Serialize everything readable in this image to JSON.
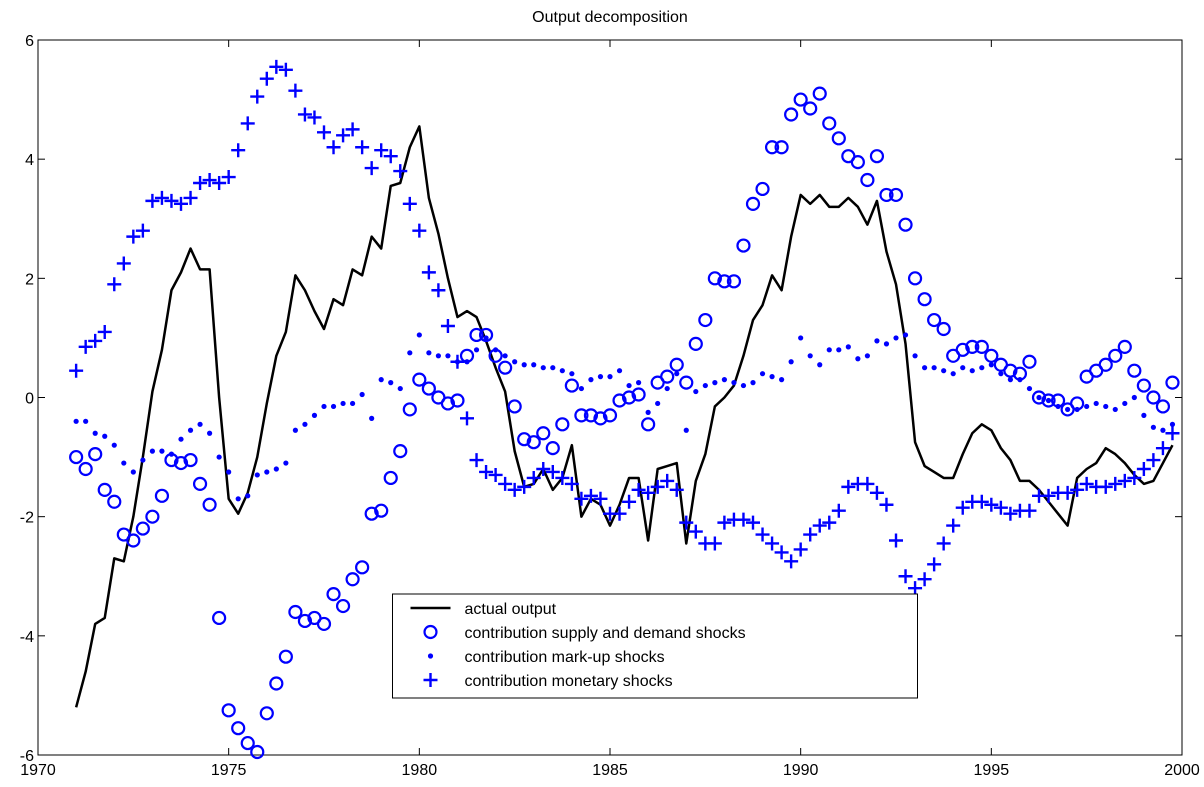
{
  "chart_data": {
    "type": "scatter-line",
    "title": "Output decomposition",
    "x": [
      1971,
      1971.25,
      1971.5,
      1971.75,
      1972,
      1972.25,
      1972.5,
      1972.75,
      1973,
      1973.25,
      1973.5,
      1973.75,
      1974,
      1974.25,
      1974.5,
      1974.75,
      1975,
      1975.25,
      1975.5,
      1975.75,
      1976,
      1976.25,
      1976.5,
      1976.75,
      1977,
      1977.25,
      1977.5,
      1977.75,
      1978,
      1978.25,
      1978.5,
      1978.75,
      1979,
      1979.25,
      1979.5,
      1979.75,
      1980,
      1980.25,
      1980.5,
      1980.75,
      1981,
      1981.25,
      1981.5,
      1981.75,
      1982,
      1982.25,
      1982.5,
      1982.75,
      1983,
      1983.25,
      1983.5,
      1983.75,
      1984,
      1984.25,
      1984.5,
      1984.75,
      1985,
      1985.25,
      1985.5,
      1985.75,
      1986,
      1986.25,
      1986.5,
      1986.75,
      1987,
      1987.25,
      1987.5,
      1987.75,
      1988,
      1988.25,
      1988.5,
      1988.75,
      1989,
      1989.25,
      1989.5,
      1989.75,
      1990,
      1990.25,
      1990.5,
      1990.75,
      1991,
      1991.25,
      1991.5,
      1991.75,
      1992,
      1992.25,
      1992.5,
      1992.75,
      1993,
      1993.25,
      1993.5,
      1993.75,
      1994,
      1994.25,
      1994.5,
      1994.75,
      1995,
      1995.25,
      1995.5,
      1995.75,
      1996,
      1996.25,
      1996.5,
      1996.75,
      1997,
      1997.25,
      1997.5,
      1997.75,
      1998,
      1998.25,
      1998.5,
      1998.75,
      1999,
      1999.25,
      1999.5,
      1999.75
    ],
    "series": [
      {
        "name": "actual output",
        "color": "#000000",
        "marker": "line",
        "values": [
          -5.2,
          -4.6,
          -3.8,
          -3.7,
          -2.7,
          -2.75,
          -2.0,
          -1.0,
          0.1,
          0.8,
          1.8,
          2.1,
          2.5,
          2.15,
          2.15,
          0.0,
          -1.7,
          -1.95,
          -1.6,
          -1.0,
          -0.1,
          0.7,
          1.1,
          2.05,
          1.8,
          1.45,
          1.15,
          1.65,
          1.55,
          2.15,
          2.05,
          2.7,
          2.5,
          3.55,
          3.6,
          4.2,
          4.55,
          3.35,
          2.75,
          2.0,
          1.35,
          1.45,
          1.35,
          0.95,
          0.5,
          0.1,
          -0.9,
          -1.5,
          -1.45,
          -1.2,
          -1.55,
          -1.35,
          -0.8,
          -2.0,
          -1.7,
          -1.8,
          -2.15,
          -1.8,
          -1.35,
          -1.35,
          -2.4,
          -1.2,
          -1.15,
          -1.1,
          -2.45,
          -1.4,
          -0.95,
          -0.15,
          0.0,
          0.2,
          0.7,
          1.3,
          1.55,
          2.05,
          1.8,
          2.7,
          3.4,
          3.25,
          3.4,
          3.2,
          3.2,
          3.35,
          3.2,
          2.9,
          3.3,
          2.45,
          1.9,
          0.9,
          -0.75,
          -1.15,
          -1.25,
          -1.35,
          -1.35,
          -0.95,
          -0.6,
          -0.45,
          -0.55,
          -0.85,
          -1.05,
          -1.4,
          -1.4,
          -1.55,
          -1.75,
          -1.95,
          -2.15,
          -1.35,
          -1.2,
          -1.1,
          -0.85,
          -0.95,
          -1.1,
          -1.3,
          -1.45,
          -1.4,
          -1.1,
          -0.8
        ]
      },
      {
        "name": "contribution supply and demand shocks",
        "color": "#0000ff",
        "marker": "circle",
        "values": [
          -1.0,
          -1.2,
          -0.95,
          -1.55,
          -1.75,
          -2.3,
          -2.4,
          -2.2,
          -2.0,
          -1.65,
          -1.05,
          -1.1,
          -1.05,
          -1.45,
          -1.8,
          -3.7,
          -5.25,
          -5.55,
          -5.8,
          -5.95,
          -5.3,
          -4.8,
          -4.35,
          -3.6,
          -3.75,
          -3.7,
          -3.8,
          -3.3,
          -3.5,
          -3.05,
          -2.85,
          -1.95,
          -1.9,
          -1.35,
          -0.9,
          -0.2,
          0.3,
          0.15,
          0.0,
          -0.1,
          -0.05,
          0.7,
          1.05,
          1.05,
          0.7,
          0.5,
          -0.15,
          -0.7,
          -0.75,
          -0.6,
          -0.85,
          -0.45,
          0.2,
          -0.3,
          -0.3,
          -0.35,
          -0.3,
          -0.05,
          0.0,
          0.05,
          -0.45,
          0.25,
          0.35,
          0.55,
          0.25,
          0.9,
          1.3,
          2.0,
          1.95,
          1.95,
          2.55,
          3.25,
          3.5,
          4.2,
          4.2,
          4.75,
          5.0,
          4.85,
          5.1,
          4.6,
          4.35,
          4.05,
          3.95,
          3.65,
          4.05,
          3.4,
          3.4,
          2.9,
          2.0,
          1.65,
          1.3,
          1.15,
          0.7,
          0.8,
          0.85,
          0.85,
          0.7,
          0.55,
          0.45,
          0.4,
          0.6,
          0.0,
          -0.05,
          -0.05,
          -0.2,
          -0.1,
          0.35,
          0.45,
          0.55,
          0.7,
          0.85,
          0.45,
          0.2,
          0.0,
          -0.15,
          0.25
        ]
      },
      {
        "name": "contribution mark-up shocks",
        "color": "#0000ff",
        "marker": "dot",
        "values": [
          -0.4,
          -0.4,
          -0.6,
          -0.65,
          -0.8,
          -1.1,
          -1.25,
          -1.05,
          -0.9,
          -0.9,
          -0.95,
          -0.7,
          -0.55,
          -0.45,
          -0.6,
          -1.0,
          -1.25,
          -1.7,
          -1.65,
          -1.3,
          -1.25,
          -1.2,
          -1.1,
          -0.55,
          -0.45,
          -0.3,
          -0.15,
          -0.15,
          -0.1,
          -0.1,
          0.05,
          -0.35,
          0.3,
          0.25,
          0.15,
          0.75,
          1.05,
          0.75,
          0.7,
          0.7,
          0.6,
          0.6,
          0.8,
          1.0,
          0.8,
          0.7,
          0.6,
          0.55,
          0.55,
          0.5,
          0.5,
          0.45,
          0.4,
          0.15,
          0.3,
          0.35,
          0.35,
          0.45,
          0.2,
          0.25,
          -0.25,
          -0.1,
          0.15,
          0.4,
          -0.55,
          0.1,
          0.2,
          0.25,
          0.3,
          0.25,
          0.2,
          0.25,
          0.4,
          0.35,
          0.3,
          0.6,
          1.0,
          0.7,
          0.55,
          0.8,
          0.8,
          0.85,
          0.65,
          0.7,
          0.95,
          0.9,
          1.0,
          1.05,
          0.7,
          0.5,
          0.5,
          0.45,
          0.4,
          0.5,
          0.45,
          0.5,
          0.55,
          0.4,
          0.3,
          0.3,
          0.15,
          0.0,
          -0.05,
          -0.15,
          -0.2,
          -0.2,
          -0.15,
          -0.1,
          -0.15,
          -0.2,
          -0.1,
          0.0,
          -0.3,
          -0.5,
          -0.55,
          -0.45
        ]
      },
      {
        "name": "contribution monetary shocks",
        "color": "#0000ff",
        "marker": "plus",
        "values": [
          0.45,
          0.85,
          0.95,
          1.1,
          1.9,
          2.25,
          2.7,
          2.8,
          3.3,
          3.35,
          3.3,
          3.25,
          3.35,
          3.6,
          3.65,
          3.6,
          3.7,
          4.15,
          4.6,
          5.05,
          5.35,
          5.55,
          5.5,
          5.15,
          4.75,
          4.7,
          4.45,
          4.2,
          4.4,
          4.5,
          4.2,
          3.85,
          4.15,
          4.05,
          3.8,
          3.25,
          2.8,
          2.1,
          1.8,
          1.2,
          0.6,
          -0.35,
          -1.05,
          -1.25,
          -1.3,
          -1.45,
          -1.55,
          -1.5,
          -1.35,
          -1.2,
          -1.25,
          -1.35,
          -1.45,
          -1.7,
          -1.65,
          -1.7,
          -1.95,
          -1.95,
          -1.75,
          -1.55,
          -1.6,
          -1.5,
          -1.4,
          -1.55,
          -2.1,
          -2.25,
          -2.45,
          -2.45,
          -2.1,
          -2.05,
          -2.05,
          -2.1,
          -2.3,
          -2.45,
          -2.6,
          -2.75,
          -2.55,
          -2.3,
          -2.15,
          -2.1,
          -1.9,
          -1.5,
          -1.45,
          -1.45,
          -1.6,
          -1.8,
          -2.4,
          -3.0,
          -3.2,
          -3.05,
          -2.8,
          -2.45,
          -2.15,
          -1.85,
          -1.75,
          -1.75,
          -1.8,
          -1.85,
          -1.95,
          -1.9,
          -1.9,
          -1.65,
          -1.65,
          -1.6,
          -1.6,
          -1.55,
          -1.45,
          -1.5,
          -1.5,
          -1.45,
          -1.4,
          -1.35,
          -1.2,
          -1.05,
          -0.85,
          -0.6
        ]
      }
    ],
    "xlim": [
      1970,
      2000
    ],
    "xticks": [
      1970,
      1975,
      1980,
      1985,
      1990,
      1995,
      2000
    ],
    "ylim": [
      -6,
      6
    ],
    "yticks": [
      -6,
      -4,
      -2,
      0,
      2,
      4,
      6
    ],
    "legend": "lower-center"
  }
}
